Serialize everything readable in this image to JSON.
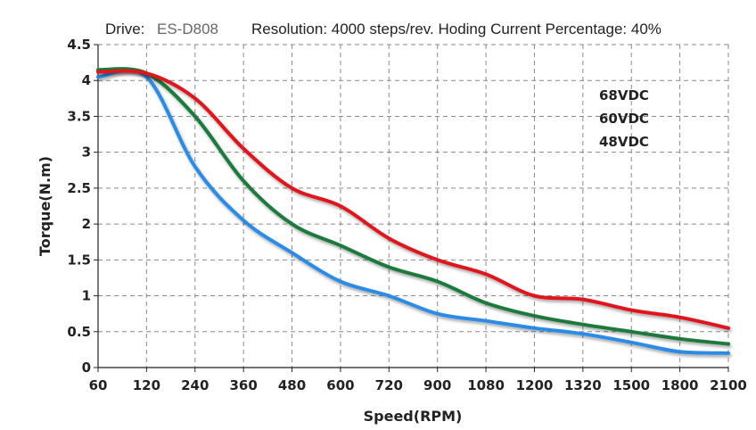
{
  "header": {
    "drive_label": "Drive:",
    "drive_model": "ES-D808",
    "resolution_text": "Resolution: 4000  steps/rev. Hoding Current Percentage: 40%"
  },
  "chart_data": {
    "type": "line",
    "title": "",
    "xlabel": "Speed(RPM)",
    "ylabel": "Torque(N.m)",
    "x": [
      "60",
      "120",
      "240",
      "360",
      "480",
      "600",
      "720",
      "900",
      "1080",
      "1200",
      "1320",
      "1500",
      "1800",
      "2100"
    ],
    "ylim": [
      0,
      4.5
    ],
    "yticks": [
      "0",
      "0.5",
      "1",
      "1.5",
      "2",
      "2.5",
      "3",
      "3.5",
      "4",
      "4.5"
    ],
    "grid": true,
    "legend_position": "top-right",
    "series": [
      {
        "name": "68VDC",
        "color": "#e0141c",
        "values": [
          4.12,
          4.1,
          3.75,
          3.05,
          2.5,
          2.25,
          1.8,
          1.5,
          1.3,
          1.0,
          0.95,
          0.8,
          0.7,
          0.55
        ]
      },
      {
        "name": "60VDC",
        "color": "#1a7a3c",
        "values": [
          4.15,
          4.1,
          3.5,
          2.6,
          2.0,
          1.7,
          1.4,
          1.2,
          0.9,
          0.72,
          0.6,
          0.5,
          0.4,
          0.33
        ]
      },
      {
        "name": "48VDC",
        "color": "#2b8ce6",
        "values": [
          4.05,
          4.05,
          2.8,
          2.05,
          1.6,
          1.2,
          1.0,
          0.75,
          0.65,
          0.55,
          0.47,
          0.35,
          0.22,
          0.2
        ]
      }
    ]
  }
}
